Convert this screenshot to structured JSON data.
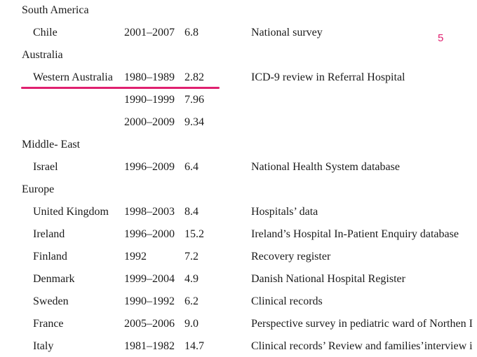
{
  "annotation": {
    "mark_label": "5",
    "color": "#e0206f"
  },
  "rows": [
    {
      "type": "region",
      "label": "South America"
    },
    {
      "type": "entry",
      "country": "Chile",
      "period": "2001–2007",
      "rate": "6.8",
      "source": "National survey"
    },
    {
      "type": "region",
      "label": "Australia"
    },
    {
      "type": "entry",
      "country": "Western Australia",
      "period": "1980–1989",
      "rate": "2.82",
      "source": "ICD-9 review in Referral Hospital"
    },
    {
      "type": "entry",
      "country": "",
      "period": "1990–1999",
      "rate": "7.96",
      "source": ""
    },
    {
      "type": "entry",
      "country": "",
      "period": "2000–2009",
      "rate": "9.34",
      "source": ""
    },
    {
      "type": "region",
      "label": "Middle- East"
    },
    {
      "type": "entry",
      "country": "Israel",
      "period": "1996–2009",
      "rate": "6.4",
      "source": "National Health System database"
    },
    {
      "type": "region",
      "label": "Europe"
    },
    {
      "type": "entry",
      "country": "United Kingdom",
      "period": "1998–2003",
      "rate": "8.4",
      "source": "Hospitals’ data"
    },
    {
      "type": "entry",
      "country": "Ireland",
      "period": "1996–2000",
      "rate": "15.2",
      "source": "Ireland’s Hospital In-Patient Enquiry database"
    },
    {
      "type": "entry",
      "country": "Finland",
      "period": "1992",
      "rate": "7.2",
      "source": "Recovery register"
    },
    {
      "type": "entry",
      "country": "Denmark",
      "period": "1999–2004",
      "rate": "4.9",
      "source": "Danish National Hospital Register"
    },
    {
      "type": "entry",
      "country": "Sweden",
      "period": "1990–1992",
      "rate": "6.2",
      "source": "Clinical records"
    },
    {
      "type": "entry",
      "country": "France",
      "period": "2005–2006",
      "rate": "9.0",
      "source": "Perspective survey in pediatric ward of Northen I"
    },
    {
      "type": "entry",
      "country": "Italy",
      "period": "1981–1982",
      "rate": "14.7",
      "source": "Clinical records’ Review and families’interview i"
    }
  ]
}
